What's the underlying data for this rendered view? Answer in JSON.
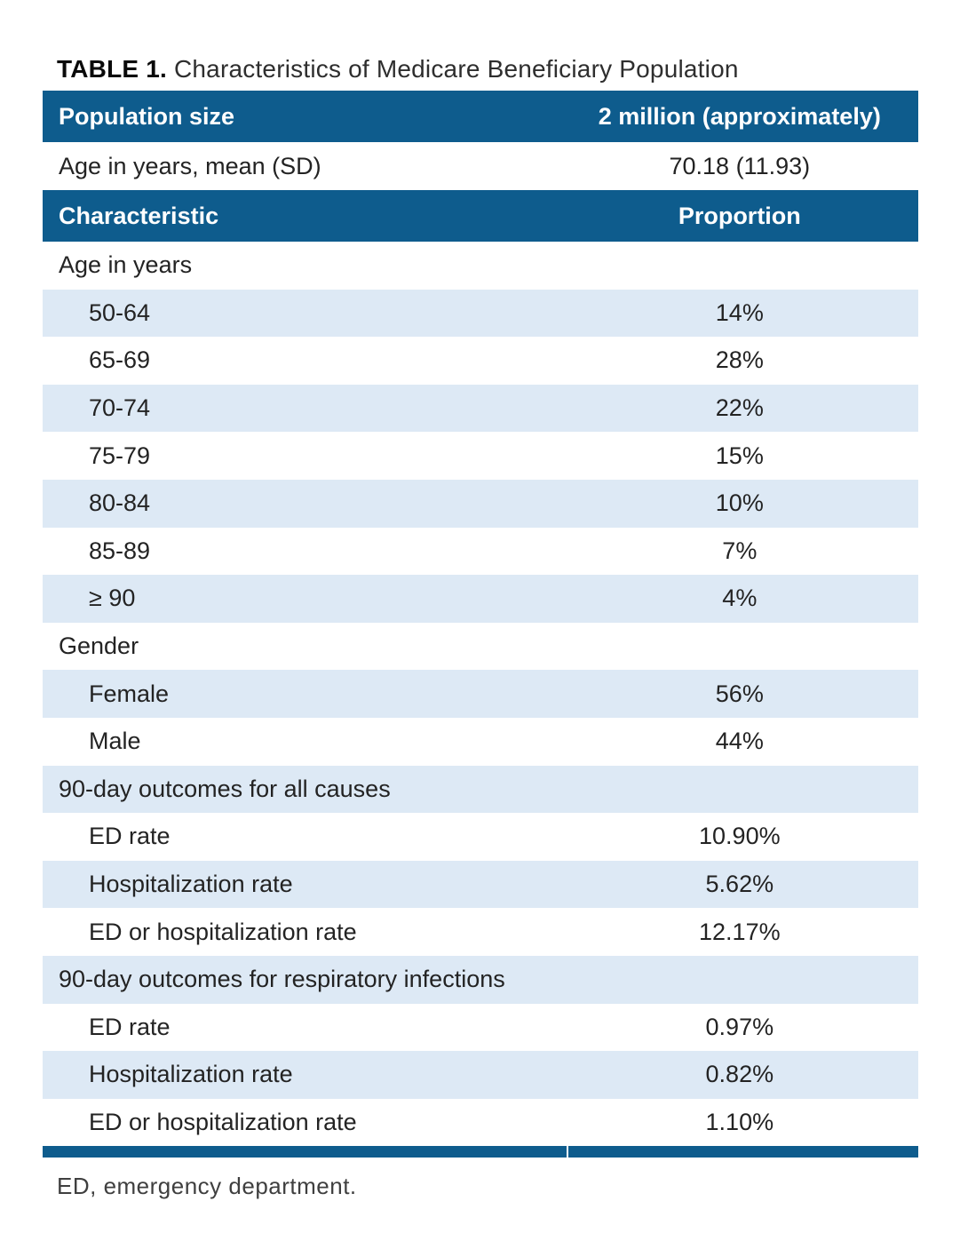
{
  "title": {
    "label": "TABLE 1.",
    "text": "Characteristics of Medicare Beneficiary Population"
  },
  "colors": {
    "header_blue": "#0e5c8d",
    "row_blue": "#dde9f5",
    "text": "#232323",
    "header_text": "#ffffff",
    "footnote": "#3f3f3f"
  },
  "table": {
    "pre_rows": [
      {
        "label": "Population size",
        "value": "2 million (approximately)"
      },
      {
        "label": "Age in years, mean (SD)",
        "value": "70.18 (11.93)"
      },
      {
        "label": "Characteristic",
        "value": "Proportion"
      }
    ],
    "rows": [
      {
        "label": "Age in years",
        "value": ""
      },
      {
        "label": "50-64",
        "value": "14%"
      },
      {
        "label": "65-69",
        "value": "28%"
      },
      {
        "label": "70-74",
        "value": "22%"
      },
      {
        "label": "75-79",
        "value": "15%"
      },
      {
        "label": "80-84",
        "value": "10%"
      },
      {
        "label": "85-89",
        "value": "7%"
      },
      {
        "label": "≥ 90",
        "value": "4%"
      },
      {
        "label": "Gender",
        "value": ""
      },
      {
        "label": "Female",
        "value": "56%"
      },
      {
        "label": "Male",
        "value": "44%"
      },
      {
        "label": "90-day outcomes for all causes",
        "value": ""
      },
      {
        "label": "ED rate",
        "value": "10.90%"
      },
      {
        "label": "Hospitalization rate",
        "value": "5.62%"
      },
      {
        "label": "ED or hospitalization rate",
        "value": "12.17%"
      },
      {
        "label": "90-day outcomes for respiratory infections",
        "value": ""
      },
      {
        "label": "ED rate",
        "value": "0.97%"
      },
      {
        "label": "Hospitalization rate",
        "value": "0.82%"
      },
      {
        "label": "ED or hospitalization rate",
        "value": "1.10%"
      }
    ]
  },
  "footnote": "ED, emergency department."
}
